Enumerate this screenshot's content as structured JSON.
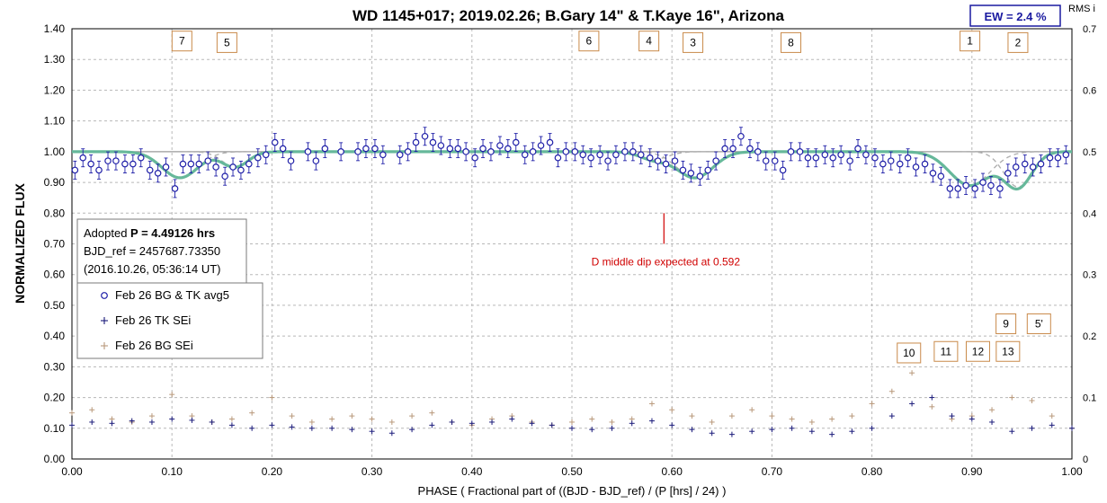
{
  "chart_data": {
    "type": "scatter",
    "title": "WD 1145+017; 2019.02.26; B.Gary 14\" & T.Kaye 16\", Arizona",
    "xlabel": "PHASE ( Fractional part of ((BJD - BJD_ref) / (P [hrs] / 24) )",
    "ylabel": "NORMALIZED FLUX",
    "right_axis_label": "RMS i",
    "xlim": [
      0,
      1
    ],
    "ylim": [
      0,
      1.4
    ],
    "right_ylim": [
      0,
      0.7
    ],
    "grid": true,
    "x_ticks": [
      "0.00",
      "0.10",
      "0.20",
      "0.30",
      "0.40",
      "0.50",
      "0.60",
      "0.70",
      "0.80",
      "0.90",
      "1.00"
    ],
    "y_ticks": [
      "0.00",
      "0.10",
      "0.20",
      "0.30",
      "0.40",
      "0.50",
      "0.60",
      "0.70",
      "0.80",
      "0.90",
      "1.00",
      "1.10",
      "1.20",
      "1.30",
      "1.40"
    ],
    "right_ticks": [
      "0",
      "0.1",
      "0.2",
      "0.3",
      "0.4",
      "0.5",
      "0.6",
      "0.7"
    ],
    "ew_label": "EW =  2.4 %",
    "info_box": {
      "line1_prefix": "Adopted ",
      "line1_bold": "P = 4.49126 hrs",
      "line2": "BJD_ref = 2457687.73350",
      "line3": "(2016.10.26, 05:36:14 UT)"
    },
    "legend": [
      {
        "label": "Feb 26 BG & TK avg5",
        "marker": "circle",
        "color": "#1f1fa8"
      },
      {
        "label": "Feb 26 TK SEi",
        "marker": "plus",
        "color": "#1a1a7a"
      },
      {
        "label": "Feb 26 BG SEi",
        "marker": "plus",
        "color": "#b8987a"
      }
    ],
    "annotation": {
      "text": "D middle dip expected at 0.592",
      "x": 0.592,
      "y_top": 0.8,
      "y_bottom": 0.7
    },
    "dip_labels": [
      {
        "text": "7",
        "x": 0.11,
        "y": 1.36
      },
      {
        "text": "5",
        "x": 0.155,
        "y": 1.355
      },
      {
        "text": "6",
        "x": 0.517,
        "y": 1.36
      },
      {
        "text": "4",
        "x": 0.577,
        "y": 1.36
      },
      {
        "text": "3",
        "x": 0.621,
        "y": 1.355
      },
      {
        "text": "8",
        "x": 0.719,
        "y": 1.355
      },
      {
        "text": "1",
        "x": 0.898,
        "y": 1.36
      },
      {
        "text": "2",
        "x": 0.946,
        "y": 1.355
      },
      {
        "text": "9",
        "x": 0.934,
        "y": 0.44
      },
      {
        "text": "5'",
        "x": 0.967,
        "y": 0.44
      },
      {
        "text": "10",
        "x": 0.837,
        "y": 0.345
      },
      {
        "text": "11",
        "x": 0.874,
        "y": 0.35
      },
      {
        "text": "12",
        "x": 0.906,
        "y": 0.35
      },
      {
        "text": "13",
        "x": 0.936,
        "y": 0.35
      }
    ],
    "model": {
      "baseline": 1.0,
      "dips": [
        {
          "center": 0.108,
          "depth": 0.085,
          "width": 0.018
        },
        {
          "center": 0.163,
          "depth": 0.05,
          "width": 0.013
        },
        {
          "center": 0.582,
          "depth": 0.025,
          "width": 0.014
        },
        {
          "center": 0.623,
          "depth": 0.085,
          "width": 0.018
        },
        {
          "center": 0.898,
          "depth": 0.11,
          "width": 0.02
        },
        {
          "center": 0.946,
          "depth": 0.115,
          "width": 0.014
        }
      ]
    },
    "series": [
      {
        "name": "Feb 26 BG & TK avg5",
        "x": [
          0.003,
          0.011,
          0.019,
          0.027,
          0.036,
          0.044,
          0.053,
          0.061,
          0.069,
          0.078,
          0.086,
          0.094,
          0.103,
          0.111,
          0.119,
          0.127,
          0.136,
          0.144,
          0.153,
          0.161,
          0.169,
          0.177,
          0.186,
          0.194,
          0.203,
          0.211,
          0.219,
          0.236,
          0.244,
          0.253,
          0.269,
          0.286,
          0.294,
          0.303,
          0.311,
          0.328,
          0.336,
          0.344,
          0.353,
          0.361,
          0.369,
          0.378,
          0.386,
          0.394,
          0.403,
          0.411,
          0.419,
          0.428,
          0.436,
          0.444,
          0.453,
          0.461,
          0.469,
          0.478,
          0.486,
          0.494,
          0.503,
          0.511,
          0.519,
          0.528,
          0.536,
          0.544,
          0.553,
          0.561,
          0.569,
          0.578,
          0.586,
          0.594,
          0.603,
          0.611,
          0.619,
          0.628,
          0.636,
          0.644,
          0.653,
          0.661,
          0.669,
          0.678,
          0.686,
          0.694,
          0.703,
          0.711,
          0.719,
          0.728,
          0.736,
          0.744,
          0.753,
          0.761,
          0.769,
          0.778,
          0.786,
          0.794,
          0.803,
          0.811,
          0.819,
          0.828,
          0.836,
          0.844,
          0.853,
          0.861,
          0.869,
          0.878,
          0.886,
          0.894,
          0.903,
          0.911,
          0.919,
          0.928,
          0.936,
          0.944,
          0.953,
          0.961,
          0.969,
          0.978,
          0.986,
          0.994
        ],
        "y": [
          0.94,
          0.98,
          0.96,
          0.94,
          0.97,
          0.97,
          0.96,
          0.96,
          0.98,
          0.94,
          0.93,
          0.95,
          0.88,
          0.96,
          0.96,
          0.96,
          0.97,
          0.95,
          0.92,
          0.95,
          0.94,
          0.96,
          0.98,
          0.99,
          1.03,
          1.01,
          0.97,
          1.0,
          0.97,
          1.01,
          1.0,
          1.0,
          1.01,
          1.01,
          0.99,
          0.99,
          1.0,
          1.03,
          1.05,
          1.03,
          1.02,
          1.01,
          1.01,
          1.0,
          0.98,
          1.01,
          1.0,
          1.02,
          1.01,
          1.03,
          0.99,
          1.0,
          1.02,
          1.03,
          0.98,
          1.0,
          1.0,
          0.99,
          0.98,
          0.99,
          0.97,
          0.99,
          1.0,
          1.0,
          0.99,
          0.98,
          0.97,
          0.96,
          0.97,
          0.94,
          0.93,
          0.92,
          0.94,
          0.97,
          1.01,
          1.01,
          1.05,
          1.01,
          1.0,
          0.97,
          0.97,
          0.94,
          1.0,
          1.0,
          0.98,
          0.98,
          0.99,
          0.98,
          0.99,
          0.97,
          1.01,
          0.99,
          0.98,
          0.96,
          0.97,
          0.96,
          0.98,
          0.95,
          0.96,
          0.93,
          0.92,
          0.88,
          0.88,
          0.89,
          0.88,
          0.9,
          0.89,
          0.88,
          0.93,
          0.95,
          0.96,
          0.95,
          0.96,
          0.98,
          0.98,
          0.99
        ]
      },
      {
        "name": "Feb 26 TK SEi",
        "x": [
          0.0,
          0.02,
          0.04,
          0.06,
          0.08,
          0.1,
          0.12,
          0.14,
          0.16,
          0.18,
          0.2,
          0.22,
          0.24,
          0.26,
          0.28,
          0.3,
          0.32,
          0.34,
          0.36,
          0.38,
          0.4,
          0.42,
          0.44,
          0.46,
          0.48,
          0.5,
          0.52,
          0.54,
          0.56,
          0.58,
          0.6,
          0.62,
          0.64,
          0.66,
          0.68,
          0.7,
          0.72,
          0.74,
          0.76,
          0.78,
          0.8,
          0.82,
          0.84,
          0.86,
          0.88,
          0.9,
          0.92,
          0.94,
          0.96,
          0.98,
          1.0
        ],
        "y": [
          0.055,
          0.06,
          0.058,
          0.062,
          0.06,
          0.065,
          0.063,
          0.06,
          0.055,
          0.05,
          0.055,
          0.052,
          0.05,
          0.05,
          0.048,
          0.045,
          0.042,
          0.048,
          0.055,
          0.06,
          0.058,
          0.06,
          0.065,
          0.058,
          0.055,
          0.05,
          0.048,
          0.05,
          0.058,
          0.062,
          0.055,
          0.048,
          0.042,
          0.04,
          0.045,
          0.048,
          0.05,
          0.045,
          0.04,
          0.045,
          0.05,
          0.07,
          0.09,
          0.1,
          0.07,
          0.065,
          0.06,
          0.045,
          0.05,
          0.055,
          0.05
        ]
      },
      {
        "name": "Feb 26 BG SEi",
        "x": [
          0.0,
          0.02,
          0.04,
          0.06,
          0.08,
          0.1,
          0.12,
          0.14,
          0.16,
          0.18,
          0.2,
          0.22,
          0.24,
          0.26,
          0.28,
          0.3,
          0.32,
          0.34,
          0.36,
          0.38,
          0.4,
          0.42,
          0.44,
          0.46,
          0.48,
          0.5,
          0.52,
          0.54,
          0.56,
          0.58,
          0.6,
          0.62,
          0.64,
          0.66,
          0.68,
          0.7,
          0.72,
          0.74,
          0.76,
          0.78,
          0.8,
          0.82,
          0.84,
          0.86,
          0.88,
          0.9,
          0.92,
          0.94,
          0.96,
          0.98,
          1.0
        ],
        "y": [
          0.075,
          0.08,
          0.065,
          0.06,
          0.07,
          0.105,
          0.07,
          0.06,
          0.065,
          0.075,
          0.1,
          0.07,
          0.06,
          0.065,
          0.07,
          0.065,
          0.06,
          0.07,
          0.075,
          0.06,
          0.055,
          0.065,
          0.07,
          0.06,
          0.055,
          0.06,
          0.065,
          0.06,
          0.065,
          0.09,
          0.08,
          0.07,
          0.06,
          0.07,
          0.08,
          0.07,
          0.065,
          0.06,
          0.065,
          0.07,
          0.09,
          0.11,
          0.14,
          0.085,
          0.065,
          0.07,
          0.08,
          0.1,
          0.095,
          0.07,
          0.05
        ]
      }
    ]
  }
}
